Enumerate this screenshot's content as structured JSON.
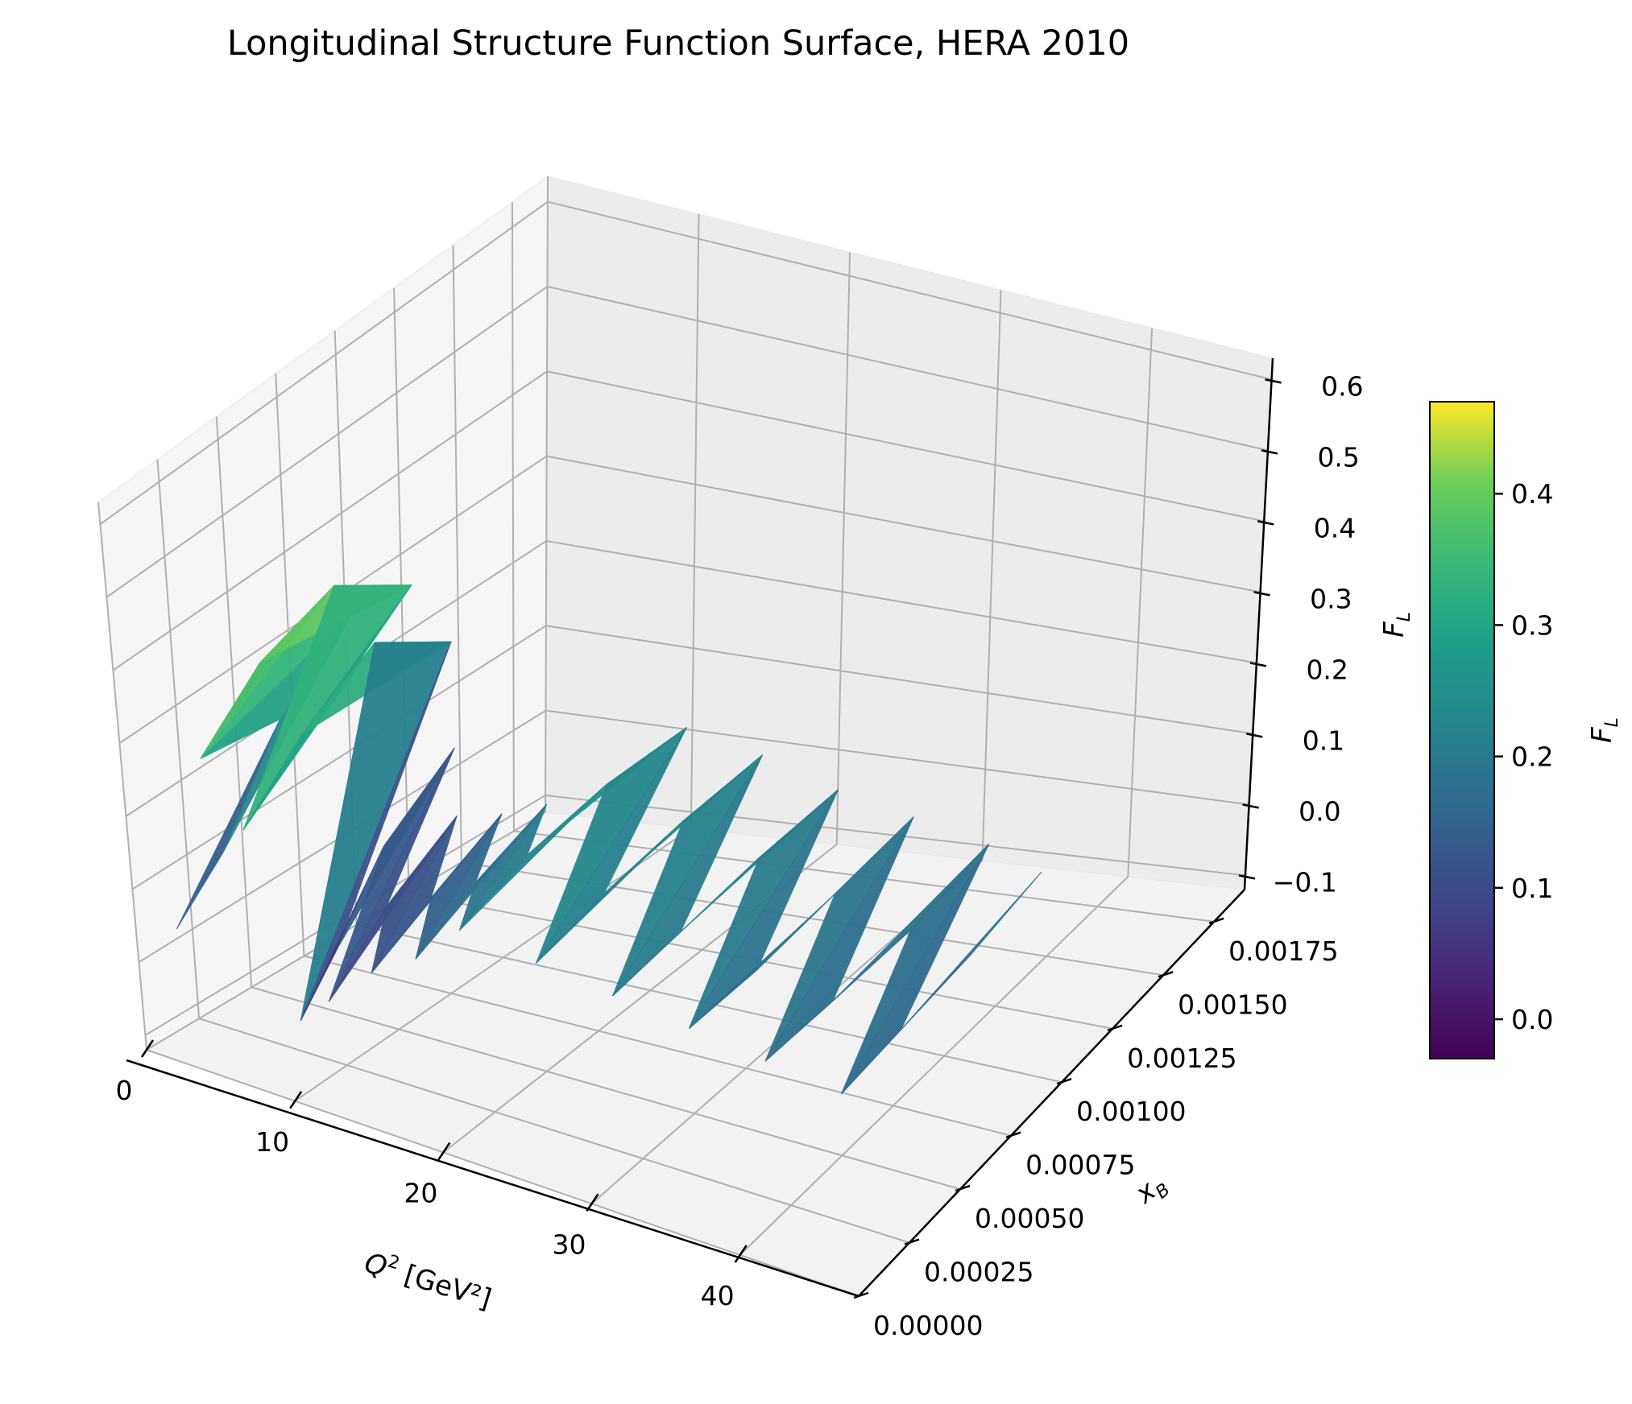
{
  "chart_data": {
    "type": "surface",
    "title": "Longitudinal Structure Function Surface, HERA 2010",
    "x_axis": {
      "label_main": "Q",
      "label_sup": "2",
      "label_unit": " [GeV²]",
      "range": [
        0,
        48
      ],
      "ticks": [
        0,
        10,
        20,
        30,
        40
      ],
      "tick_labels": [
        "0",
        "10",
        "20",
        "30",
        "40"
      ]
    },
    "y_axis": {
      "label_main": "x",
      "label_sub": "B",
      "range": [
        0,
        0.0019
      ],
      "ticks": [
        0,
        0.00025,
        0.0005,
        0.00075,
        0.001,
        0.00125,
        0.0015,
        0.00175
      ],
      "tick_labels": [
        "0.00000",
        "0.00025",
        "0.00050",
        "0.00075",
        "0.00100",
        "0.00125",
        "0.00150",
        "0.00175"
      ]
    },
    "z_axis": {
      "label_main": "F",
      "label_sub": "L",
      "range": [
        -0.12,
        0.63
      ],
      "ticks": [
        -0.1,
        0.0,
        0.1,
        0.2,
        0.3,
        0.4,
        0.5,
        0.6
      ],
      "tick_labels": [
        "−0.1",
        "0.0",
        "0.1",
        "0.2",
        "0.3",
        "0.4",
        "0.5",
        "0.6"
      ]
    },
    "colorbar": {
      "label_main": "F",
      "label_sub": "L",
      "colormap": "viridis",
      "range": [
        -0.03,
        0.47
      ],
      "ticks": [
        0.0,
        0.1,
        0.2,
        0.3,
        0.4
      ],
      "tick_labels": [
        "0.0",
        "0.1",
        "0.2",
        "0.3",
        "0.4"
      ]
    },
    "grid": true,
    "surface_points": [
      [
        2,
        5e-05,
        0.05
      ],
      [
        2.5,
        0.00025,
        0.12
      ],
      [
        3,
        0.0005,
        0.25
      ],
      [
        3.5,
        0.0008,
        0.33
      ],
      [
        4.5,
        5e-05,
        0.3
      ],
      [
        5,
        0.0003,
        0.38
      ],
      [
        5.5,
        0.0006,
        0.42
      ],
      [
        6,
        0.0009,
        0.36
      ],
      [
        7,
        5e-05,
        0.22
      ],
      [
        7.5,
        0.0003,
        0.3
      ],
      [
        8,
        0.0006,
        0.36
      ],
      [
        8.5,
        0.0009,
        0.3
      ],
      [
        10,
        5e-05,
        -0.02
      ],
      [
        10.5,
        0.0002,
        0.05
      ],
      [
        11,
        0.0004,
        0.15
      ],
      [
        11.5,
        0.0007,
        0.22
      ],
      [
        12,
        5e-05,
        0.02
      ],
      [
        12.5,
        0.0003,
        0.1
      ],
      [
        13,
        0.0006,
        0.16
      ],
      [
        15,
        5e-05,
        0.08
      ],
      [
        15.5,
        0.0003,
        0.13
      ],
      [
        16,
        0.0006,
        0.18
      ],
      [
        18,
        5e-05,
        0.12
      ],
      [
        18.5,
        0.0003,
        0.17
      ],
      [
        19,
        0.0006,
        0.21
      ],
      [
        21,
        5e-05,
        0.18
      ],
      [
        22,
        0.0003,
        0.23
      ],
      [
        23,
        0.0006,
        0.26
      ],
      [
        24,
        0.0009,
        0.27
      ],
      [
        26,
        5e-05,
        0.17
      ],
      [
        27,
        0.0003,
        0.21
      ],
      [
        28,
        0.0006,
        0.24
      ],
      [
        29,
        0.0009,
        0.26
      ],
      [
        31,
        5e-05,
        0.16
      ],
      [
        32,
        0.0003,
        0.19
      ],
      [
        33,
        0.0006,
        0.22
      ],
      [
        34,
        0.0009,
        0.24
      ],
      [
        36,
        5e-05,
        0.15
      ],
      [
        37,
        0.0003,
        0.17
      ],
      [
        38,
        0.0006,
        0.2
      ],
      [
        39,
        0.0009,
        0.23
      ],
      [
        41,
        5e-05,
        0.14
      ],
      [
        42,
        0.0003,
        0.16
      ],
      [
        43,
        0.0006,
        0.18
      ],
      [
        44,
        0.0009,
        0.22
      ],
      [
        46,
        5e-05,
        0.13
      ],
      [
        46.5,
        0.0003,
        0.15
      ],
      [
        47,
        0.0006,
        0.17
      ],
      [
        47.5,
        0.0009,
        0.2
      ]
    ]
  }
}
